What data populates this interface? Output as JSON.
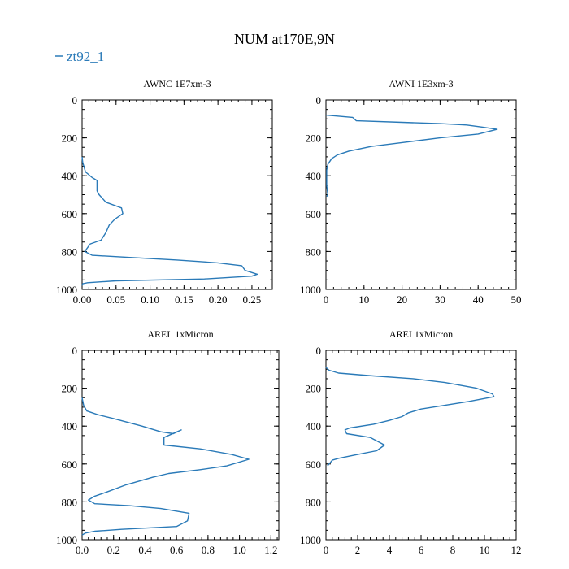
{
  "figure": {
    "title": "NUM at170E,9N",
    "legend": {
      "label": "zt92_1",
      "color": "#2a7ab8"
    }
  },
  "chart_data": [
    {
      "type": "line",
      "title": "AWNC  1E7xm-3",
      "xlim": [
        0,
        0.28
      ],
      "ylim": [
        1000,
        0
      ],
      "xticks": [
        "0.00",
        "0.05",
        "0.10",
        "0.15",
        "0.20",
        "0.25"
      ],
      "xtick_values": [
        0,
        0.05,
        0.1,
        0.15,
        0.2,
        0.25
      ],
      "yticks": [
        "0",
        "200",
        "400",
        "600",
        "800",
        "1000"
      ],
      "ytick_values": [
        0,
        200,
        400,
        600,
        800,
        1000
      ],
      "series": [
        {
          "name": "zt92_1",
          "points": [
            [
              0,
              300
            ],
            [
              0.001,
              330
            ],
            [
              0.005,
              380
            ],
            [
              0.015,
              410
            ],
            [
              0.022,
              425
            ],
            [
              0.022,
              480
            ],
            [
              0.025,
              500
            ],
            [
              0.035,
              540
            ],
            [
              0.058,
              570
            ],
            [
              0.06,
              600
            ],
            [
              0.048,
              630
            ],
            [
              0.04,
              660
            ],
            [
              0.035,
              700
            ],
            [
              0.028,
              740
            ],
            [
              0.012,
              760
            ],
            [
              0.008,
              780
            ],
            [
              0.004,
              800
            ],
            [
              0.015,
              820
            ],
            [
              0.065,
              830
            ],
            [
              0.14,
              845
            ],
            [
              0.2,
              860
            ],
            [
              0.235,
              875
            ],
            [
              0.24,
              900
            ],
            [
              0.258,
              920
            ],
            [
              0.25,
              930
            ],
            [
              0.18,
              945
            ],
            [
              0.05,
              955
            ],
            [
              0.008,
              965
            ],
            [
              0.001,
              970
            ],
            [
              0,
              980
            ]
          ]
        }
      ]
    },
    {
      "type": "line",
      "title": "AWNI  1E3xm-3",
      "xlim": [
        0,
        50
      ],
      "ylim": [
        1000,
        0
      ],
      "xticks": [
        "0",
        "10",
        "20",
        "30",
        "40",
        "50"
      ],
      "xtick_values": [
        0,
        10,
        20,
        30,
        40,
        50
      ],
      "yticks": [
        "0",
        "200",
        "400",
        "600",
        "800",
        "1000"
      ],
      "ytick_values": [
        0,
        200,
        400,
        600,
        800,
        1000
      ],
      "series": [
        {
          "name": "zt92_1",
          "points": [
            [
              0,
              80
            ],
            [
              7,
              92
            ],
            [
              8,
              110
            ],
            [
              20,
              118
            ],
            [
              30,
              125
            ],
            [
              37,
              132
            ],
            [
              41,
              143
            ],
            [
              45,
              155
            ],
            [
              40,
              180
            ],
            [
              30,
              200
            ],
            [
              20,
              225
            ],
            [
              12,
              245
            ],
            [
              6,
              270
            ],
            [
              3,
              290
            ],
            [
              1.5,
              310
            ],
            [
              0.5,
              340
            ],
            [
              0.2,
              370
            ],
            [
              0.2,
              450
            ],
            [
              0.5,
              500
            ],
            [
              0.2,
              510
            ]
          ]
        }
      ]
    },
    {
      "type": "line",
      "title": "AREL  1xMicron",
      "xlim": [
        0,
        1.25
      ],
      "ylim": [
        1000,
        0
      ],
      "xticks": [
        "0.0",
        "0.2",
        "0.4",
        "0.6",
        "0.8",
        "1.0",
        "1.2"
      ],
      "xtick_values": [
        0,
        0.2,
        0.4,
        0.6,
        0.8,
        1.0,
        1.2
      ],
      "yticks": [
        "0",
        "200",
        "400",
        "600",
        "800",
        "1000"
      ],
      "ytick_values": [
        0,
        200,
        400,
        600,
        800,
        1000
      ],
      "series": [
        {
          "name": "zt92_1",
          "points": [
            [
              0,
              250
            ],
            [
              0.01,
              290
            ],
            [
              0.03,
              320
            ],
            [
              0.1,
              340
            ],
            [
              0.2,
              360
            ],
            [
              0.38,
              400
            ],
            [
              0.5,
              430
            ],
            [
              0.58,
              440
            ],
            [
              0.63,
              420
            ],
            [
              0.52,
              460
            ],
            [
              0.52,
              500
            ],
            [
              0.75,
              520
            ],
            [
              0.95,
              550
            ],
            [
              1.06,
              575
            ],
            [
              0.92,
              610
            ],
            [
              0.75,
              630
            ],
            [
              0.55,
              650
            ],
            [
              0.45,
              670
            ],
            [
              0.28,
              710
            ],
            [
              0.15,
              750
            ],
            [
              0.08,
              770
            ],
            [
              0.04,
              790
            ],
            [
              0.08,
              810
            ],
            [
              0.3,
              820
            ],
            [
              0.5,
              835
            ],
            [
              0.68,
              860
            ],
            [
              0.67,
              900
            ],
            [
              0.6,
              930
            ],
            [
              0.25,
              945
            ],
            [
              0.08,
              955
            ],
            [
              0.02,
              965
            ],
            [
              0,
              975
            ]
          ]
        }
      ]
    },
    {
      "type": "line",
      "title": "AREI  1xMicron",
      "xlim": [
        0,
        12
      ],
      "ylim": [
        1000,
        0
      ],
      "xticks": [
        "0",
        "2",
        "4",
        "6",
        "8",
        "10",
        "12"
      ],
      "xtick_values": [
        0,
        2,
        4,
        6,
        8,
        10,
        12
      ],
      "yticks": [
        "0",
        "200",
        "400",
        "600",
        "800",
        "1000"
      ],
      "ytick_values": [
        0,
        200,
        400,
        600,
        800,
        1000
      ],
      "series": [
        {
          "name": "zt92_1",
          "points": [
            [
              0,
              90
            ],
            [
              0.2,
              105
            ],
            [
              0.8,
              120
            ],
            [
              3,
              135
            ],
            [
              5.5,
              150
            ],
            [
              7.5,
              170
            ],
            [
              9.5,
              200
            ],
            [
              10.5,
              230
            ],
            [
              10.6,
              245
            ],
            [
              9,
              270
            ],
            [
              7.5,
              290
            ],
            [
              6,
              310
            ],
            [
              5.2,
              330
            ],
            [
              4.8,
              350
            ],
            [
              4,
              370
            ],
            [
              3,
              390
            ],
            [
              1.5,
              410
            ],
            [
              1.2,
              420
            ],
            [
              1.3,
              440
            ],
            [
              2.8,
              460
            ],
            [
              3.7,
              500
            ],
            [
              3.2,
              530
            ],
            [
              2,
              550
            ],
            [
              0.8,
              570
            ],
            [
              0.4,
              580
            ],
            [
              0.2,
              600
            ],
            [
              0.1,
              610
            ]
          ]
        }
      ]
    }
  ]
}
